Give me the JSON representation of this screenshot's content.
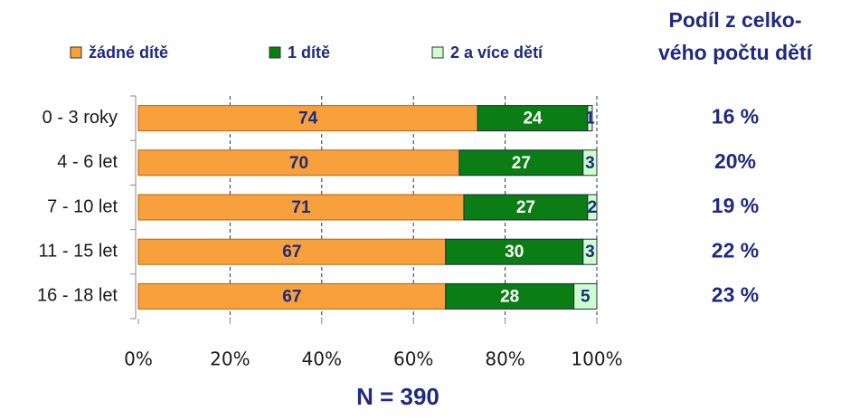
{
  "chart_data": {
    "type": "stacked_barh",
    "categories": [
      "0 - 3 roky",
      "4 - 6 let",
      "7 - 10 let",
      "11 - 15 let",
      "16 - 18 let"
    ],
    "series": [
      {
        "name": "žádné dítě",
        "color": "#f7a03c",
        "values": [
          74,
          70,
          71,
          67,
          67
        ]
      },
      {
        "name": "1 dítě",
        "color": "#0a7d14",
        "values": [
          24,
          27,
          27,
          30,
          28
        ]
      },
      {
        "name": "2 a více dětí",
        "color": "#ccffcc",
        "values": [
          1,
          3,
          2,
          3,
          5
        ]
      }
    ],
    "xlim": [
      0,
      100
    ],
    "xticks": [
      {
        "value": 0,
        "label": "0%"
      },
      {
        "value": 20,
        "label": "20%"
      },
      {
        "value": 40,
        "label": "40%"
      },
      {
        "value": 60,
        "label": "60%"
      },
      {
        "value": 80,
        "label": "80%"
      },
      {
        "value": 100,
        "label": "100%"
      }
    ],
    "grid": true,
    "legend": "top",
    "annotations": {
      "side_title": [
        "Podíl z celko-",
        "vého počtu dětí"
      ],
      "side_values": [
        "16 %",
        "20%",
        "19 %",
        "22 %",
        "23 %"
      ],
      "sample_size": "N = 390"
    }
  }
}
